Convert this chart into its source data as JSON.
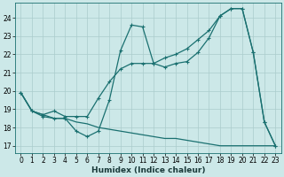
{
  "xlabel": "Humidex (Indice chaleur)",
  "bg_color": "#cce8e8",
  "grid_color": "#aacccc",
  "line_color": "#1a7070",
  "xlim": [
    -0.5,
    23.5
  ],
  "ylim": [
    16.6,
    24.8
  ],
  "xticks": [
    0,
    1,
    2,
    3,
    4,
    5,
    6,
    7,
    8,
    9,
    10,
    11,
    12,
    13,
    14,
    15,
    16,
    17,
    18,
    19,
    20,
    21,
    22,
    23
  ],
  "yticks": [
    17,
    18,
    19,
    20,
    21,
    22,
    23,
    24
  ],
  "line1_x": [
    0,
    1,
    2,
    3,
    4,
    5,
    6,
    7,
    8,
    9,
    10,
    11,
    12,
    13,
    14,
    15,
    16,
    17,
    18,
    19,
    20,
    21,
    22,
    23
  ],
  "line1_y": [
    19.9,
    18.9,
    18.6,
    18.5,
    18.5,
    17.8,
    17.5,
    17.8,
    19.5,
    22.2,
    23.6,
    23.5,
    21.5,
    21.3,
    21.5,
    21.6,
    22.1,
    22.9,
    24.1,
    24.5,
    24.5,
    22.1,
    18.3,
    17.0
  ],
  "line2_x": [
    0,
    1,
    2,
    3,
    4,
    5,
    6,
    7,
    8,
    9,
    10,
    11,
    12,
    13,
    14,
    15,
    16,
    17,
    18,
    19,
    20,
    21,
    22,
    23
  ],
  "line2_y": [
    19.9,
    18.9,
    18.7,
    18.9,
    18.6,
    18.6,
    18.6,
    19.6,
    20.5,
    21.2,
    21.5,
    21.5,
    21.5,
    21.8,
    22.0,
    22.3,
    22.8,
    23.3,
    24.1,
    24.5,
    24.5,
    22.1,
    18.3,
    17.0
  ],
  "line3_x": [
    0,
    1,
    2,
    3,
    4,
    5,
    6,
    7,
    8,
    9,
    10,
    11,
    12,
    13,
    14,
    15,
    16,
    17,
    18,
    19,
    20,
    21,
    22,
    23
  ],
  "line3_y": [
    19.9,
    18.9,
    18.7,
    18.5,
    18.5,
    18.3,
    18.2,
    18.0,
    17.9,
    17.8,
    17.7,
    17.6,
    17.5,
    17.4,
    17.4,
    17.3,
    17.2,
    17.1,
    17.0,
    17.0,
    17.0,
    17.0,
    17.0,
    17.0
  ]
}
